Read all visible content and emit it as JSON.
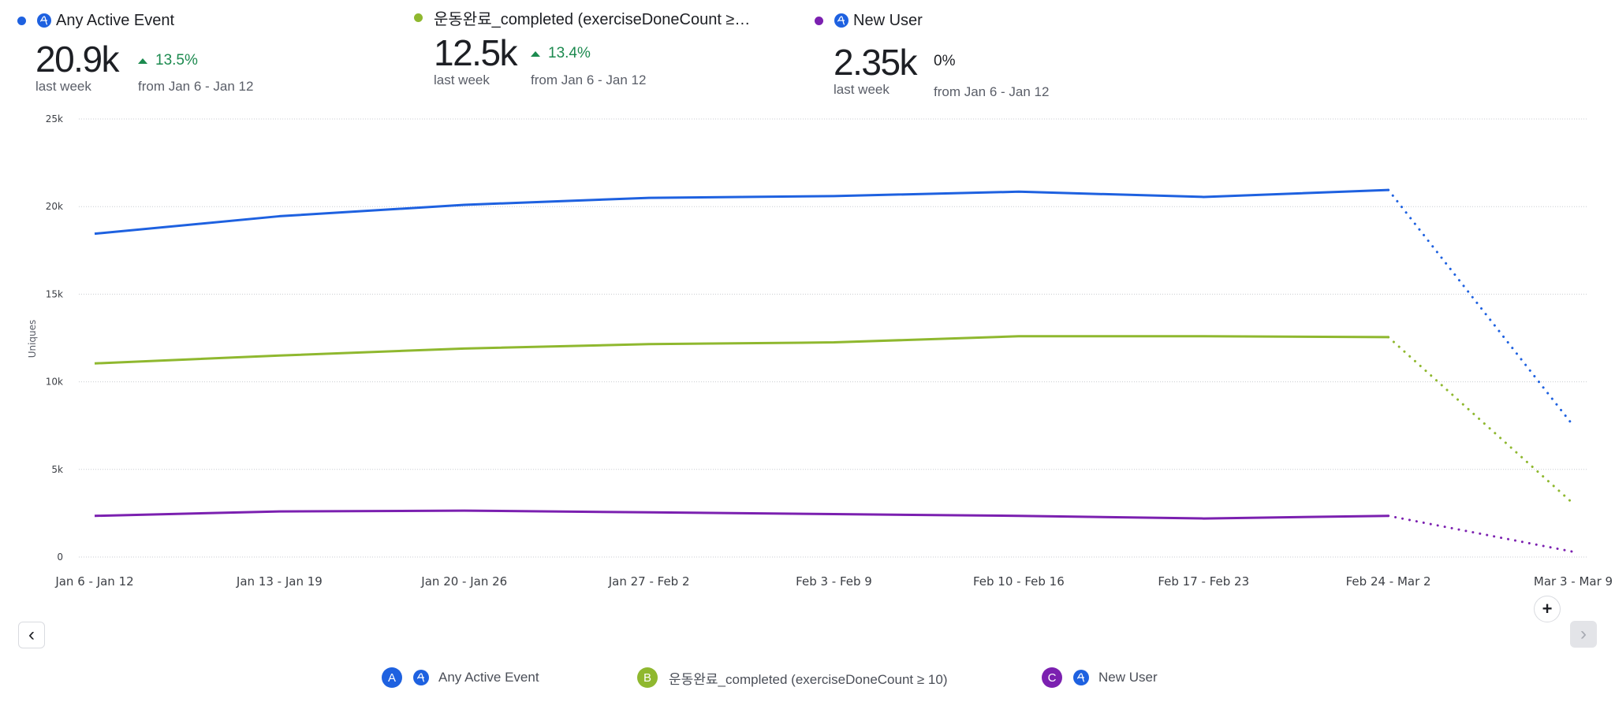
{
  "kpis": [
    {
      "name": "Any Active Event",
      "color": "#1e61e0",
      "has_icon": true,
      "value": "20.9k",
      "period": "last week",
      "delta": "13.5%",
      "delta_dir": "up",
      "from": "from Jan 6 - Jan 12"
    },
    {
      "name": "운동완료_completed (exerciseDoneCount ≥…",
      "color": "#8fb82f",
      "has_icon": false,
      "value": "12.5k",
      "period": "last week",
      "delta": "13.4%",
      "delta_dir": "up",
      "from": "from Jan 6 - Jan 12"
    },
    {
      "name": "New User",
      "color": "#7b20b0",
      "has_icon": true,
      "value": "2.35k",
      "period": "last week",
      "delta": "0%",
      "delta_dir": "none",
      "from": "from Jan 6 - Jan 12"
    }
  ],
  "legend": [
    {
      "badge": "A",
      "label": "Any Active Event",
      "color": "#1e61e0",
      "has_icon": true
    },
    {
      "badge": "B",
      "label": "운동완료_completed (exerciseDoneCount ≥ 10)",
      "color": "#8fb82f",
      "has_icon": false
    },
    {
      "badge": "C",
      "label": "New User",
      "color": "#7b20b0",
      "has_icon": true
    }
  ],
  "controls": {
    "prev": "‹",
    "next": "›",
    "add": "+"
  },
  "chart_data": {
    "type": "line",
    "title": "",
    "xlabel": "",
    "ylabel": "Uniques",
    "ylim": [
      0,
      25000
    ],
    "yticks": [
      0,
      5000,
      10000,
      15000,
      20000,
      25000
    ],
    "ytick_labels": [
      "0",
      "5k",
      "10k",
      "15k",
      "20k",
      "25k"
    ],
    "grid": true,
    "categories": [
      "Jan 6 - Jan 12",
      "Jan 13 - Jan 19",
      "Jan 20 - Jan 26",
      "Jan 27 - Feb 2",
      "Feb 3 - Feb 9",
      "Feb 10 - Feb 16",
      "Feb 17 - Feb 23",
      "Feb 24 - Mar 2",
      "Mar 3 - Mar 9"
    ],
    "incomplete_from_index": 7,
    "series": [
      {
        "name": "Any Active Event",
        "color": "#1e61e0",
        "values": [
          18450,
          19450,
          20100,
          20500,
          20600,
          20850,
          20550,
          20950,
          7500
        ]
      },
      {
        "name": "운동완료_completed (exerciseDoneCount ≥ 10)",
        "color": "#8fb82f",
        "values": [
          11050,
          11500,
          11900,
          12150,
          12250,
          12600,
          12600,
          12550,
          3050
        ]
      },
      {
        "name": "New User",
        "color": "#7b20b0",
        "values": [
          2350,
          2600,
          2650,
          2550,
          2450,
          2350,
          2200,
          2350,
          300
        ]
      }
    ]
  }
}
